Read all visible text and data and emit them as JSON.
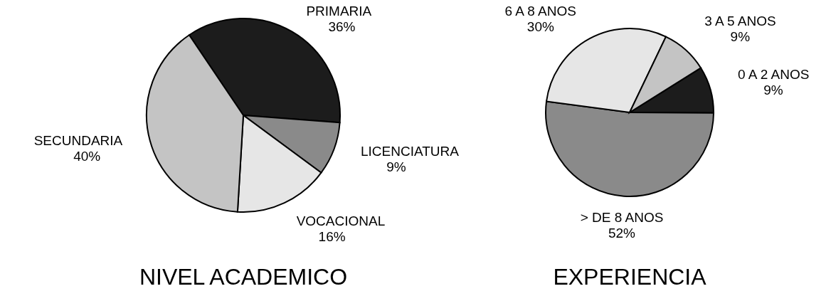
{
  "chart_data": [
    {
      "type": "pie",
      "title": "NIVEL ACADEMICO",
      "categories": [
        "PRIMARIA",
        "LICENCIATURA",
        "VOCACIONAL",
        "SECUNDARIA"
      ],
      "values": [
        36,
        9,
        16,
        40
      ],
      "colors": [
        "#1c1c1c",
        "#8a8a8a",
        "#e6e6e6",
        "#c4c4c4"
      ],
      "value_labels": [
        "36%",
        "9%",
        "16%",
        "40%"
      ]
    },
    {
      "type": "pie",
      "title": "EXPERIENCIA",
      "categories": [
        "0 A 2 ANOS",
        "> DE 8 ANOS",
        "6 A 8 ANOS",
        "3 A 5 ANOS"
      ],
      "values": [
        9,
        52,
        30,
        9
      ],
      "colors": [
        "#1c1c1c",
        "#8a8a8a",
        "#e6e6e6",
        "#c4c4c4"
      ],
      "value_labels": [
        "9%",
        "52%",
        "30%",
        "9%"
      ]
    }
  ]
}
